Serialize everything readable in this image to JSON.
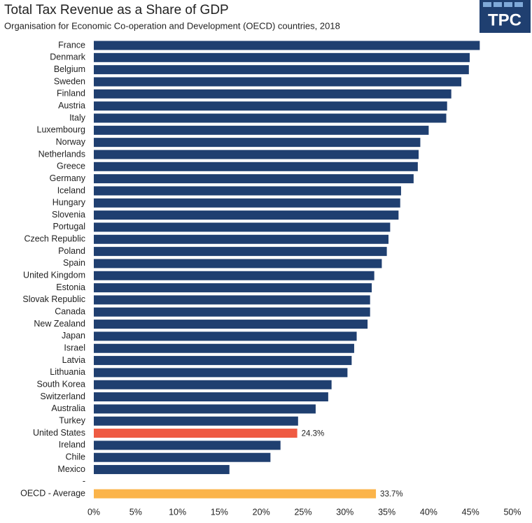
{
  "chart_data": {
    "type": "barh",
    "title": "Total Tax Revenue as a Share of GDP",
    "subtitle": "Organisation for Economic Co-operation and Development (OECD) countries, 2018",
    "logo": "TPC",
    "categories": [
      "France",
      "Denmark",
      "Belgium",
      "Sweden",
      "Finland",
      "Austria",
      "Italy",
      "Luxembourg",
      "Norway",
      "Netherlands",
      "Greece",
      "Germany",
      "Iceland",
      "Hungary",
      "Slovenia",
      "Portugal",
      "Czech Republic",
      "Poland",
      "Spain",
      "United Kingdom",
      "Estonia",
      "Slovak Republic",
      "Canada",
      "New Zealand",
      "Japan",
      "Israel",
      "Latvia",
      "Lithuania",
      "South Korea",
      "Switzerland",
      "Australia",
      "Turkey",
      "United States",
      "Ireland",
      "Chile",
      "Mexico",
      "-",
      "OECD - Average"
    ],
    "values": [
      46.1,
      44.9,
      44.8,
      43.9,
      42.7,
      42.2,
      42.1,
      40.0,
      39.0,
      38.8,
      38.7,
      38.2,
      36.7,
      36.6,
      36.4,
      35.4,
      35.2,
      35.0,
      34.4,
      33.5,
      33.2,
      33.0,
      33.0,
      32.7,
      31.4,
      31.1,
      30.8,
      30.3,
      28.4,
      28.0,
      26.5,
      24.4,
      24.3,
      22.3,
      21.1,
      16.2,
      null,
      33.7
    ],
    "value_labels": [
      null,
      null,
      null,
      null,
      null,
      null,
      null,
      null,
      null,
      null,
      null,
      null,
      null,
      null,
      null,
      null,
      null,
      null,
      null,
      null,
      null,
      null,
      null,
      null,
      null,
      null,
      null,
      null,
      null,
      null,
      null,
      null,
      "24.3%",
      null,
      null,
      null,
      null,
      "33.7%"
    ],
    "colors": [
      "#1f3f70",
      "#1f3f70",
      "#1f3f70",
      "#1f3f70",
      "#1f3f70",
      "#1f3f70",
      "#1f3f70",
      "#1f3f70",
      "#1f3f70",
      "#1f3f70",
      "#1f3f70",
      "#1f3f70",
      "#1f3f70",
      "#1f3f70",
      "#1f3f70",
      "#1f3f70",
      "#1f3f70",
      "#1f3f70",
      "#1f3f70",
      "#1f3f70",
      "#1f3f70",
      "#1f3f70",
      "#1f3f70",
      "#1f3f70",
      "#1f3f70",
      "#1f3f70",
      "#1f3f70",
      "#1f3f70",
      "#1f3f70",
      "#1f3f70",
      "#1f3f70",
      "#1f3f70",
      "#ef5a42",
      "#1f3f70",
      "#1f3f70",
      "#1f3f70",
      "#1f3f70",
      "#fbb44a"
    ],
    "xlim": [
      0,
      50
    ],
    "xticks": [
      {
        "value": 0,
        "label": "0%"
      },
      {
        "value": 5,
        "label": "5%"
      },
      {
        "value": 10,
        "label": "10%"
      },
      {
        "value": 15,
        "label": "15%"
      },
      {
        "value": 20,
        "label": "20%"
      },
      {
        "value": 25,
        "label": "25%"
      },
      {
        "value": 30,
        "label": "30%"
      },
      {
        "value": 35,
        "label": "35%"
      },
      {
        "value": 40,
        "label": "40%"
      },
      {
        "value": 45,
        "label": "45%"
      },
      {
        "value": 50,
        "label": "50%"
      }
    ],
    "grid": false
  }
}
